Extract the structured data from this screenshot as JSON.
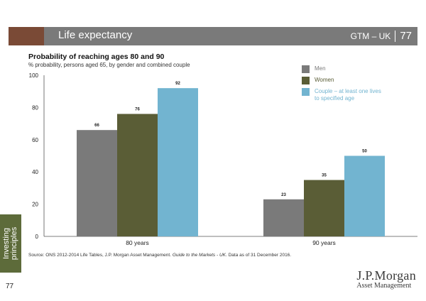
{
  "header": {
    "title": "Life expectancy",
    "section": "GTM – UK",
    "page": "77"
  },
  "chart_data": {
    "type": "bar",
    "title": "Probability of reaching ages 80 and 90",
    "subtitle": "% probability, persons aged 65, by gender and combined couple",
    "categories": [
      "80 years",
      "90 years"
    ],
    "series": [
      {
        "name": "Men",
        "values": [
          66,
          23
        ],
        "color": "#7a7a7a"
      },
      {
        "name": "Women",
        "values": [
          76,
          35
        ],
        "color": "#5a5d36"
      },
      {
        "name": "Couple – at least one lives to specified age",
        "values": [
          92,
          50
        ],
        "color": "#72b4d0"
      }
    ],
    "ylim": [
      0,
      100
    ],
    "yticks": [
      "0",
      "20",
      "40",
      "60",
      "80",
      "100"
    ],
    "legend": "top-right",
    "grid": false
  },
  "source": {
    "text_before": "Source: ONS 2012-2014 Life Tables, J.P. Morgan Asset Management. ",
    "italic": "Guide to the Markets - UK",
    "text_after": ". Data as of 31 December 2016."
  },
  "side_tab": {
    "line1": "Investing",
    "line2": "principles"
  },
  "page_number": "77",
  "logo": {
    "line1": "J.P.Morgan",
    "line2": "Asset Management"
  }
}
